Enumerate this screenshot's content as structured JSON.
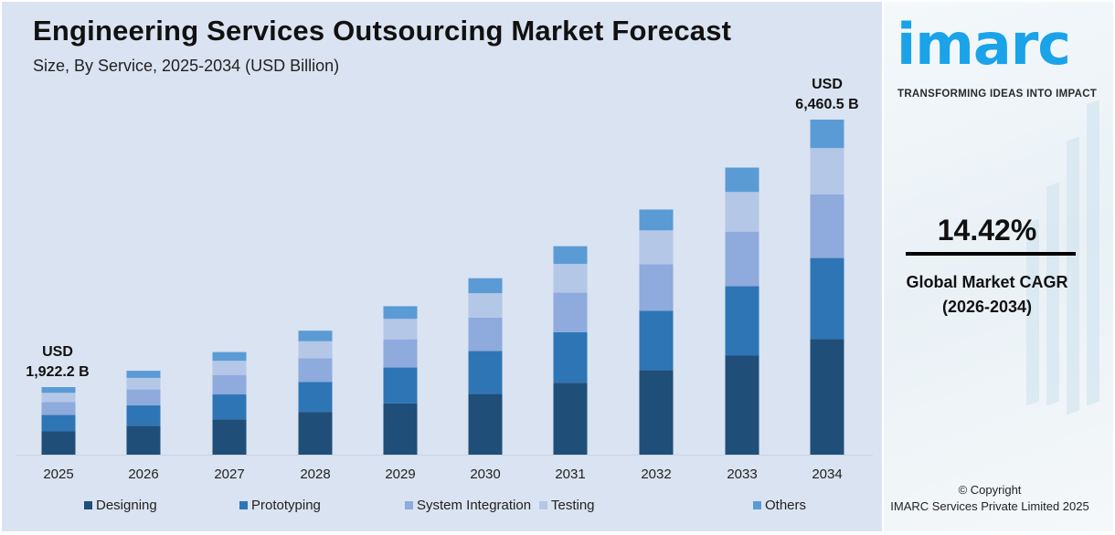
{
  "header": {
    "title": "Engineering Services Outsourcing Market Forecast",
    "subtitle": "Size, By Service, 2025-2034 (USD Billion)"
  },
  "chart_data": {
    "type": "bar",
    "stacked": true,
    "categories": [
      "2025",
      "2026",
      "2027",
      "2028",
      "2029",
      "2030",
      "2031",
      "2032",
      "2033",
      "2034"
    ],
    "series": [
      {
        "name": "Designing",
        "color": "#1f4e79",
        "values": [
          663.2,
          758.8,
          868.2,
          993.4,
          1136.7,
          1300.6,
          1488.1,
          1702.7,
          1948.2,
          2228.9
        ]
      },
      {
        "name": "Prototyping",
        "color": "#2e75b6",
        "values": [
          465.2,
          532.3,
          609.0,
          696.8,
          797.3,
          912.3,
          1043.8,
          1194.4,
          1366.6,
          1563.4
        ]
      },
      {
        "name": "System Integration",
        "color": "#8faadc",
        "values": [
          365.2,
          417.9,
          478.2,
          547.1,
          626.0,
          716.3,
          819.5,
          937.7,
          1072.9,
          1227.5
        ]
      },
      {
        "name": "Testing",
        "color": "#b4c7e7",
        "values": [
          265.3,
          303.5,
          347.3,
          397.4,
          454.7,
          520.2,
          595.3,
          681.1,
          779.3,
          891.5
        ]
      },
      {
        "name": "Others",
        "color": "#5b9bd5",
        "values": [
          163.4,
          186.9,
          213.9,
          244.8,
          280.0,
          320.4,
          366.6,
          419.5,
          480.0,
          549.1
        ]
      }
    ],
    "annotations": {
      "first": {
        "line1": "USD",
        "line2": "1,922.2 B"
      },
      "last": {
        "line1": "USD",
        "line2": "6,460.5 B"
      }
    },
    "xlabel": "",
    "ylabel": "",
    "grid": false,
    "legend": "bottom"
  },
  "side": {
    "logo": "imarc",
    "tagline": "TRANSFORMING IDEAS INTO IMPACT",
    "cagr_value": "14.42%",
    "cagr_label": "Global Market CAGR",
    "cagr_period": "(2026-2034)",
    "copyright_line1": "© Copyright",
    "copyright_line2": "IMARC Services Private Limited 2025",
    "brand_color": "#1aa3e8"
  }
}
